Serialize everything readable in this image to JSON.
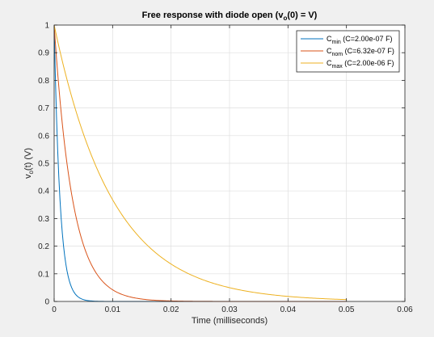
{
  "chart_data": {
    "type": "line",
    "title_parts": {
      "before_sub": "Free response with diode open (v",
      "sub": "o",
      "after_sub": "(0) = V)"
    },
    "xlabel": "Time (milliseconds)",
    "ylabel_parts": {
      "before_sub": "v",
      "sub": "o",
      "after_sub": "(t) (V)"
    },
    "xlim": [
      0,
      0.06
    ],
    "ylim": [
      0,
      1
    ],
    "xticks": [
      0,
      0.01,
      0.02,
      0.03,
      0.04,
      0.05,
      0.06
    ],
    "xtick_labels": [
      "0",
      "0.01",
      "0.02",
      "0.03",
      "0.04",
      "0.05",
      "0.06"
    ],
    "yticks": [
      0,
      0.1,
      0.2,
      0.3,
      0.4,
      0.5,
      0.6,
      0.7,
      0.8,
      0.9,
      1
    ],
    "ytick_labels": [
      "0",
      "0.1",
      "0.2",
      "0.3",
      "0.4",
      "0.5",
      "0.6",
      "0.7",
      "0.8",
      "0.9",
      "1"
    ],
    "grid": true,
    "legend_position": "top-right",
    "x_end": 0.05,
    "series": [
      {
        "name_main": "C",
        "name_sub": "min",
        "name_rest": " (C=2.00e-07 F)",
        "color": "#0072bd",
        "tau": 0.001,
        "x": [
          0,
          0.0005,
          0.001,
          0.002,
          0.003,
          0.004,
          0.005,
          0.006,
          0.008,
          0.01,
          0.05
        ],
        "y": [
          1,
          0.607,
          0.368,
          0.135,
          0.05,
          0.018,
          0.007,
          0.002,
          0.0003,
          0,
          0
        ]
      },
      {
        "name_main": "C",
        "name_sub": "nom",
        "name_rest": " (C=6.32e-07 F)",
        "color": "#d95319",
        "tau": 0.00316,
        "x": [
          0,
          0.002,
          0.004,
          0.006,
          0.008,
          0.01,
          0.015,
          0.02,
          0.03,
          0.05
        ],
        "y": [
          1,
          0.53,
          0.28,
          0.15,
          0.08,
          0.042,
          0.009,
          0.002,
          0,
          0
        ]
      },
      {
        "name_main": "C",
        "name_sub": "max",
        "name_rest": " (C=2.00e-06 F)",
        "color": "#edb120",
        "tau": 0.01,
        "x": [
          0,
          0.005,
          0.01,
          0.015,
          0.02,
          0.03,
          0.04,
          0.05
        ],
        "y": [
          1,
          0.607,
          0.368,
          0.223,
          0.135,
          0.05,
          0.018,
          0.007
        ]
      }
    ]
  }
}
